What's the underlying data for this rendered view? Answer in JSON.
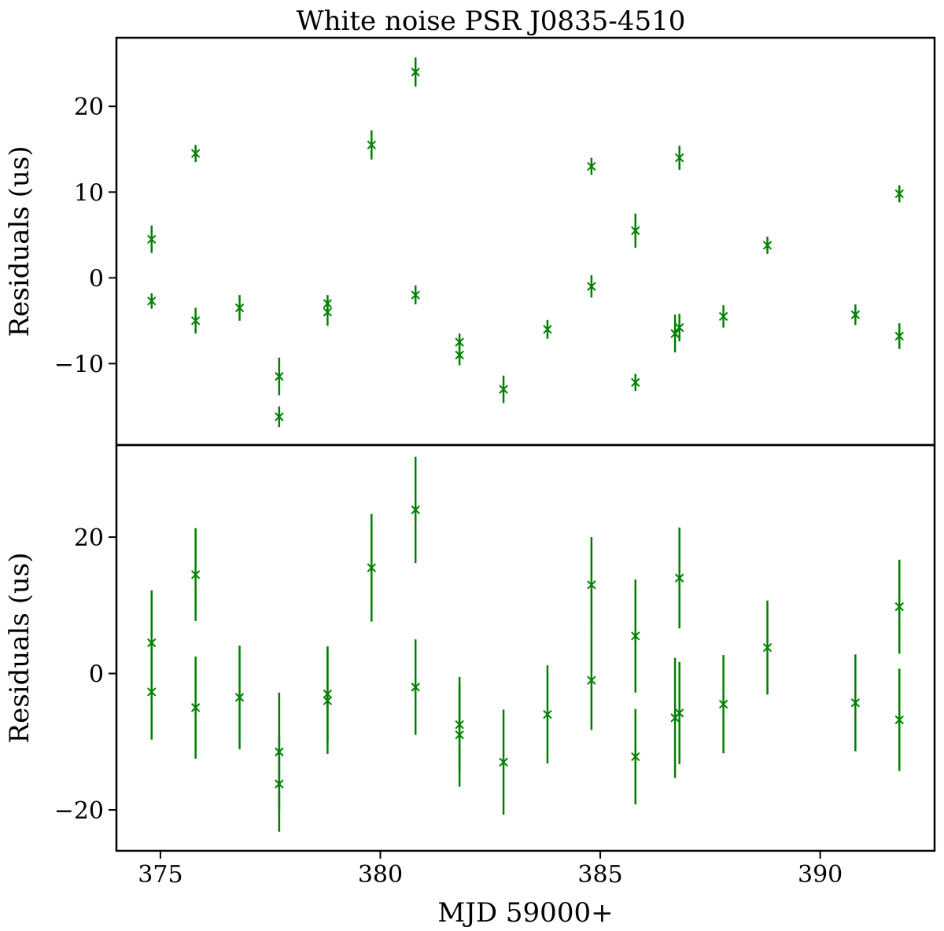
{
  "chart_data": {
    "type": "scatter",
    "title": "White noise PSR J0835-4510",
    "xlabel": "MJD 59000+",
    "xlim": [
      374.0,
      392.6
    ],
    "xticks": [
      375,
      380,
      385,
      390
    ],
    "xticklabels": [
      "375",
      "380",
      "385",
      "390"
    ],
    "color": "#008000",
    "marker": "x",
    "panels": [
      {
        "ylabel": "Residuals (us)",
        "ylim": [
          -19.5,
          28.0
        ],
        "yticks": [
          20,
          10,
          0,
          -10
        ],
        "yticklabels": [
          "20",
          "10",
          "0",
          "−10"
        ],
        "series": [
          {
            "x": [
              374.8,
              374.8,
              375.8,
              375.8,
              376.8,
              377.7,
              377.7,
              378.8,
              378.8,
              379.8,
              380.8,
              380.8,
              381.8,
              381.8,
              382.8,
              383.8,
              384.8,
              384.8,
              385.8,
              385.8,
              386.7,
              386.8,
              386.8,
              387.8,
              388.8,
              390.8,
              391.8,
              391.8
            ],
            "y": [
              4.5,
              -2.7,
              14.5,
              -5.0,
              -3.5,
              -11.5,
              -16.2,
              -3.0,
              -4.0,
              15.5,
              24.0,
              -2.0,
              -7.5,
              -9.0,
              -13.0,
              -6.0,
              13.0,
              -1.0,
              5.5,
              -12.2,
              -6.5,
              -5.8,
              14.0,
              -4.5,
              3.8,
              -4.3,
              9.8,
              -6.8
            ],
            "yerr": [
              1.6,
              0.9,
              1.0,
              1.5,
              1.5,
              2.2,
              1.2,
              1.0,
              1.6,
              1.7,
              1.7,
              1.1,
              1.0,
              1.2,
              1.6,
              1.1,
              1.0,
              1.3,
              2.0,
              1.0,
              2.2,
              1.6,
              1.4,
              1.3,
              1.0,
              1.2,
              1.0,
              1.5
            ]
          }
        ]
      },
      {
        "ylabel": "Residuals (us)",
        "ylim": [
          -26.0,
          33.5
        ],
        "yticks": [
          20,
          0,
          -20
        ],
        "yticklabels": [
          "20",
          "0",
          "−20"
        ],
        "series": [
          {
            "x": [
              374.8,
              374.8,
              375.8,
              375.8,
              376.8,
              377.7,
              377.7,
              378.8,
              378.8,
              379.8,
              380.8,
              380.8,
              381.8,
              381.8,
              382.8,
              383.8,
              384.8,
              384.8,
              385.8,
              385.8,
              386.7,
              386.8,
              386.8,
              387.8,
              388.8,
              390.8,
              391.8,
              391.8
            ],
            "y": [
              4.5,
              -2.7,
              14.5,
              -5.0,
              -3.5,
              -11.5,
              -16.2,
              -3.0,
              -4.0,
              15.5,
              24.0,
              -2.0,
              -7.5,
              -9.0,
              -13.0,
              -6.0,
              13.0,
              -1.0,
              5.5,
              -12.2,
              -6.5,
              -5.8,
              14.0,
              -4.5,
              3.8,
              -4.3,
              9.8,
              -6.8
            ],
            "yerr": [
              7.7,
              7.0,
              6.8,
              7.5,
              7.6,
              8.7,
              7.0,
              7.0,
              7.8,
              7.9,
              7.8,
              7.0,
              7.0,
              7.6,
              7.7,
              7.2,
              7.0,
              7.3,
              8.3,
              7.0,
              8.8,
              7.5,
              7.4,
              7.2,
              6.9,
              7.1,
              6.9,
              7.5
            ]
          }
        ]
      }
    ]
  }
}
